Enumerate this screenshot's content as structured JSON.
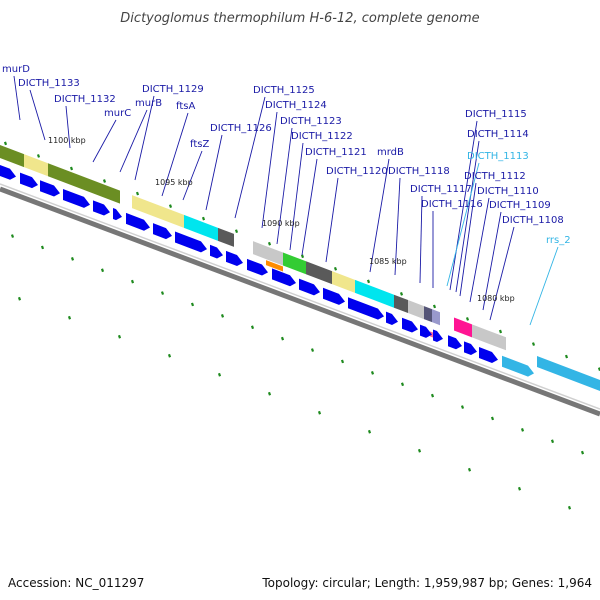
{
  "title": "Dictyoglomus thermophilum H-6-12, complete genome",
  "footer": {
    "accession": "Accession: NC_011297",
    "summary": "Topology: circular; Length: 1,959,987 bp; Genes: 1,964"
  },
  "scale_labels": [
    "1100 kbp",
    "1095 kbp",
    "1090 kbp",
    "1085 kbp",
    "1080 kbp"
  ],
  "gene_labels": [
    {
      "text": "murD",
      "color": "#1a1aa6"
    },
    {
      "text": "DICTH_1133",
      "color": "#1a1aa6"
    },
    {
      "text": "DICTH_1132",
      "color": "#1a1aa6"
    },
    {
      "text": "murC",
      "color": "#1a1aa6"
    },
    {
      "text": "murB",
      "color": "#1a1aa6"
    },
    {
      "text": "DICTH_1129",
      "color": "#1a1aa6"
    },
    {
      "text": "ftsA",
      "color": "#1a1aa6"
    },
    {
      "text": "ftsZ",
      "color": "#1a1aa6"
    },
    {
      "text": "DICTH_1126",
      "color": "#1a1aa6"
    },
    {
      "text": "DICTH_1125",
      "color": "#1a1aa6"
    },
    {
      "text": "DICTH_1124",
      "color": "#1a1aa6"
    },
    {
      "text": "DICTH_1123",
      "color": "#1a1aa6"
    },
    {
      "text": "DICTH_1122",
      "color": "#1a1aa6"
    },
    {
      "text": "DICTH_1121",
      "color": "#1a1aa6"
    },
    {
      "text": "DICTH_1120",
      "color": "#1a1aa6"
    },
    {
      "text": "mrdB",
      "color": "#1a1aa6"
    },
    {
      "text": "DICTH_1118",
      "color": "#1a1aa6"
    },
    {
      "text": "DICTH_1117",
      "color": "#1a1aa6"
    },
    {
      "text": "DICTH_1116",
      "color": "#1a1aa6"
    },
    {
      "text": "DICTH_1115",
      "color": "#1a1aa6"
    },
    {
      "text": "DICTH_1114",
      "color": "#1a1aa6"
    },
    {
      "text": "DICTH_1113",
      "color": "#33b5e5"
    },
    {
      "text": "DICTH_1112",
      "color": "#1a1aa6"
    },
    {
      "text": "DICTH_1110",
      "color": "#1a1aa6"
    },
    {
      "text": "DICTH_1109",
      "color": "#1a1aa6"
    },
    {
      "text": "DICTH_1108",
      "color": "#1a1aa6"
    },
    {
      "text": "rrs_2",
      "color": "#33b5e5"
    }
  ],
  "colors": {
    "gene_arrow": "#0000ee",
    "rna_arrow": "#33b5e5",
    "backbone": "#777777",
    "gc_tick": "#1e8a1e",
    "olive": "#6b8e23",
    "khaki": "#f0e68c",
    "cyan": "#00e5ee",
    "dark_gray": "#5a5a5a",
    "light_gray": "#c8c8c8",
    "green": "#33cc33",
    "orange": "#ff8c00",
    "magenta": "#ff1493"
  }
}
